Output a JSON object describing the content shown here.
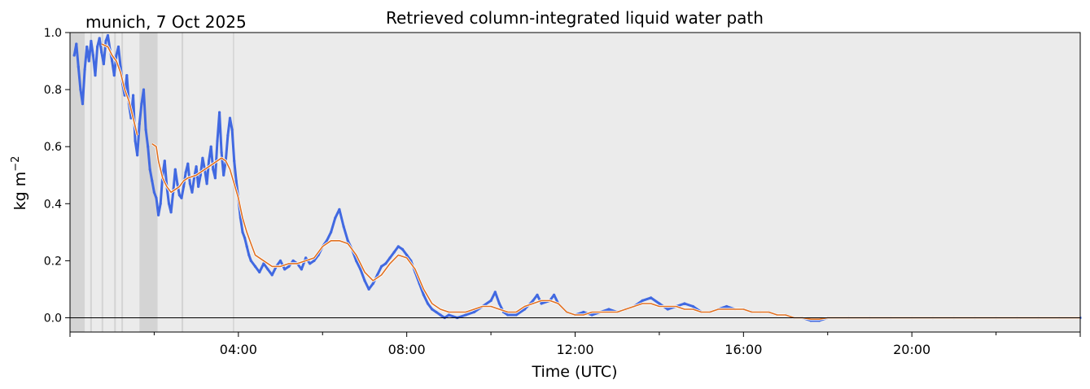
{
  "chart_data": {
    "type": "line",
    "title": "Retrieved column-integrated liquid water path",
    "location_label": "munich, 7 Oct 2025",
    "xlabel": "Time (UTC)",
    "ylabel_base": "kg m",
    "ylabel_exp": "−2",
    "xlim_hours": [
      0,
      24
    ],
    "ylim": [
      -0.05,
      1.0
    ],
    "x_ticks": [
      {
        "hour": 4,
        "label": "04:00"
      },
      {
        "hour": 8,
        "label": "08:00"
      },
      {
        "hour": 12,
        "label": "12:00"
      },
      {
        "hour": 16,
        "label": "16:00"
      },
      {
        "hour": 20,
        "label": "20:00"
      }
    ],
    "y_ticks": [
      {
        "value": 0.0,
        "label": "0.0"
      },
      {
        "value": 0.2,
        "label": "0.2"
      },
      {
        "value": 0.4,
        "label": "0.4"
      },
      {
        "value": 0.6,
        "label": "0.6"
      },
      {
        "value": 0.8,
        "label": "0.8"
      },
      {
        "value": 1.0,
        "label": "1.0"
      }
    ],
    "grid": false,
    "zero_line": true,
    "colors": {
      "background": "#ebebeb",
      "raw_series": "#4169e1",
      "smoothed_series": "#e07020",
      "flag_shade": "#d4d4d4"
    },
    "flagged_periods_hours": [
      [
        0.0,
        0.35
      ],
      [
        0.48,
        0.52
      ],
      [
        0.75,
        0.79
      ],
      [
        1.05,
        1.09
      ],
      [
        1.22,
        1.26
      ],
      [
        1.65,
        2.08
      ],
      [
        2.65,
        2.69
      ],
      [
        3.87,
        3.9
      ]
    ],
    "raw_series": {
      "name": "raw",
      "points": [
        [
          0.1,
          0.92
        ],
        [
          0.15,
          0.96
        ],
        [
          0.2,
          0.88
        ],
        [
          0.25,
          0.8
        ],
        [
          0.3,
          0.75
        ],
        [
          0.35,
          0.87
        ],
        [
          0.4,
          0.95
        ],
        [
          0.45,
          0.9
        ],
        [
          0.5,
          0.97
        ],
        [
          0.55,
          0.92
        ],
        [
          0.6,
          0.85
        ],
        [
          0.65,
          0.95
        ],
        [
          0.7,
          0.98
        ],
        [
          0.75,
          0.93
        ],
        [
          0.8,
          0.89
        ],
        [
          0.85,
          0.97
        ],
        [
          0.9,
          0.99
        ],
        [
          0.95,
          0.94
        ],
        [
          1.0,
          0.9
        ],
        [
          1.05,
          0.85
        ],
        [
          1.1,
          0.92
        ],
        [
          1.15,
          0.95
        ],
        [
          1.2,
          0.88
        ],
        [
          1.25,
          0.82
        ],
        [
          1.3,
          0.78
        ],
        [
          1.35,
          0.85
        ],
        [
          1.4,
          0.75
        ],
        [
          1.45,
          0.7
        ],
        [
          1.5,
          0.78
        ],
        [
          1.55,
          0.62
        ],
        [
          1.6,
          0.57
        ],
        [
          1.65,
          0.68
        ],
        [
          1.7,
          0.75
        ],
        [
          1.75,
          0.8
        ],
        [
          1.8,
          0.66
        ],
        [
          1.85,
          0.6
        ],
        [
          1.9,
          0.52
        ],
        [
          1.95,
          0.48
        ],
        [
          2.0,
          0.44
        ],
        [
          2.05,
          0.42
        ],
        [
          2.1,
          0.36
        ],
        [
          2.15,
          0.4
        ],
        [
          2.2,
          0.5
        ],
        [
          2.25,
          0.55
        ],
        [
          2.3,
          0.46
        ],
        [
          2.35,
          0.4
        ],
        [
          2.4,
          0.37
        ],
        [
          2.45,
          0.44
        ],
        [
          2.5,
          0.52
        ],
        [
          2.55,
          0.47
        ],
        [
          2.6,
          0.43
        ],
        [
          2.65,
          0.42
        ],
        [
          2.7,
          0.46
        ],
        [
          2.75,
          0.51
        ],
        [
          2.8,
          0.54
        ],
        [
          2.85,
          0.47
        ],
        [
          2.9,
          0.44
        ],
        [
          2.95,
          0.49
        ],
        [
          3.0,
          0.53
        ],
        [
          3.05,
          0.46
        ],
        [
          3.1,
          0.5
        ],
        [
          3.15,
          0.56
        ],
        [
          3.2,
          0.52
        ],
        [
          3.25,
          0.47
        ],
        [
          3.3,
          0.55
        ],
        [
          3.35,
          0.6
        ],
        [
          3.4,
          0.52
        ],
        [
          3.45,
          0.49
        ],
        [
          3.5,
          0.62
        ],
        [
          3.55,
          0.72
        ],
        [
          3.6,
          0.58
        ],
        [
          3.65,
          0.5
        ],
        [
          3.7,
          0.55
        ],
        [
          3.75,
          0.64
        ],
        [
          3.8,
          0.7
        ],
        [
          3.85,
          0.66
        ],
        [
          3.9,
          0.55
        ],
        [
          3.95,
          0.48
        ],
        [
          4.0,
          0.42
        ],
        [
          4.05,
          0.35
        ],
        [
          4.1,
          0.3
        ],
        [
          4.15,
          0.28
        ],
        [
          4.2,
          0.25
        ],
        [
          4.25,
          0.22
        ],
        [
          4.3,
          0.2
        ],
        [
          4.4,
          0.18
        ],
        [
          4.5,
          0.16
        ],
        [
          4.6,
          0.19
        ],
        [
          4.7,
          0.17
        ],
        [
          4.8,
          0.15
        ],
        [
          4.9,
          0.18
        ],
        [
          5.0,
          0.2
        ],
        [
          5.1,
          0.17
        ],
        [
          5.2,
          0.18
        ],
        [
          5.3,
          0.2
        ],
        [
          5.4,
          0.19
        ],
        [
          5.5,
          0.17
        ],
        [
          5.6,
          0.21
        ],
        [
          5.7,
          0.19
        ],
        [
          5.8,
          0.2
        ],
        [
          5.9,
          0.22
        ],
        [
          6.0,
          0.25
        ],
        [
          6.1,
          0.27
        ],
        [
          6.2,
          0.3
        ],
        [
          6.3,
          0.35
        ],
        [
          6.4,
          0.38
        ],
        [
          6.5,
          0.32
        ],
        [
          6.6,
          0.27
        ],
        [
          6.7,
          0.24
        ],
        [
          6.8,
          0.2
        ],
        [
          6.9,
          0.17
        ],
        [
          7.0,
          0.13
        ],
        [
          7.1,
          0.1
        ],
        [
          7.2,
          0.12
        ],
        [
          7.3,
          0.15
        ],
        [
          7.4,
          0.18
        ],
        [
          7.5,
          0.19
        ],
        [
          7.6,
          0.21
        ],
        [
          7.7,
          0.23
        ],
        [
          7.8,
          0.25
        ],
        [
          7.9,
          0.24
        ],
        [
          8.0,
          0.22
        ],
        [
          8.1,
          0.2
        ],
        [
          8.2,
          0.16
        ],
        [
          8.3,
          0.12
        ],
        [
          8.4,
          0.08
        ],
        [
          8.5,
          0.05
        ],
        [
          8.6,
          0.03
        ],
        [
          8.7,
          0.02
        ],
        [
          8.8,
          0.01
        ],
        [
          8.9,
          0.0
        ],
        [
          9.0,
          0.01
        ],
        [
          9.2,
          0.0
        ],
        [
          9.4,
          0.01
        ],
        [
          9.6,
          0.02
        ],
        [
          9.8,
          0.04
        ],
        [
          10.0,
          0.06
        ],
        [
          10.1,
          0.09
        ],
        [
          10.2,
          0.05
        ],
        [
          10.3,
          0.02
        ],
        [
          10.4,
          0.01
        ],
        [
          10.6,
          0.01
        ],
        [
          10.8,
          0.03
        ],
        [
          11.0,
          0.06
        ],
        [
          11.1,
          0.08
        ],
        [
          11.2,
          0.05
        ],
        [
          11.4,
          0.06
        ],
        [
          11.5,
          0.08
        ],
        [
          11.6,
          0.05
        ],
        [
          11.8,
          0.02
        ],
        [
          12.0,
          0.01
        ],
        [
          12.2,
          0.02
        ],
        [
          12.4,
          0.01
        ],
        [
          12.6,
          0.02
        ],
        [
          12.8,
          0.03
        ],
        [
          13.0,
          0.02
        ],
        [
          13.2,
          0.03
        ],
        [
          13.4,
          0.04
        ],
        [
          13.6,
          0.06
        ],
        [
          13.8,
          0.07
        ],
        [
          14.0,
          0.05
        ],
        [
          14.2,
          0.03
        ],
        [
          14.4,
          0.04
        ],
        [
          14.6,
          0.05
        ],
        [
          14.8,
          0.04
        ],
        [
          15.0,
          0.02
        ],
        [
          15.2,
          0.02
        ],
        [
          15.4,
          0.03
        ],
        [
          15.6,
          0.04
        ],
        [
          15.8,
          0.03
        ],
        [
          16.0,
          0.03
        ],
        [
          16.2,
          0.02
        ],
        [
          16.4,
          0.02
        ],
        [
          16.6,
          0.02
        ],
        [
          16.8,
          0.01
        ],
        [
          17.0,
          0.01
        ],
        [
          17.2,
          0.0
        ],
        [
          17.4,
          0.0
        ],
        [
          17.6,
          -0.01
        ],
        [
          17.8,
          -0.01
        ],
        [
          18.0,
          0.0
        ],
        [
          18.5,
          0.0
        ],
        [
          19.0,
          0.0
        ],
        [
          19.5,
          0.0
        ],
        [
          20.0,
          0.0
        ],
        [
          20.5,
          0.0
        ],
        [
          21.0,
          0.0
        ],
        [
          21.5,
          0.0
        ],
        [
          22.0,
          0.0
        ],
        [
          22.5,
          0.0
        ],
        [
          23.0,
          0.0
        ],
        [
          23.5,
          0.0
        ],
        [
          24.0,
          0.0
        ]
      ]
    },
    "smoothed_series": {
      "name": "smoothed",
      "segments": [
        [
          [
            0.75,
            0.96
          ],
          [
            0.9,
            0.95
          ],
          [
            1.0,
            0.92
          ],
          [
            1.1,
            0.9
          ],
          [
            1.2,
            0.86
          ],
          [
            1.3,
            0.8
          ],
          [
            1.4,
            0.76
          ],
          [
            1.5,
            0.7
          ],
          [
            1.6,
            0.64
          ]
        ],
        [
          [
            1.95,
            0.61
          ],
          [
            2.05,
            0.6
          ],
          [
            2.1,
            0.55
          ],
          [
            2.2,
            0.49
          ],
          [
            2.3,
            0.46
          ],
          [
            2.4,
            0.44
          ],
          [
            2.5,
            0.45
          ],
          [
            2.6,
            0.46
          ],
          [
            2.7,
            0.48
          ],
          [
            2.8,
            0.49
          ],
          [
            3.0,
            0.5
          ],
          [
            3.2,
            0.52
          ],
          [
            3.4,
            0.54
          ],
          [
            3.6,
            0.56
          ],
          [
            3.7,
            0.55
          ],
          [
            3.8,
            0.52
          ],
          [
            3.9,
            0.47
          ],
          [
            4.0,
            0.42
          ],
          [
            4.1,
            0.35
          ],
          [
            4.2,
            0.3
          ],
          [
            4.3,
            0.26
          ],
          [
            4.4,
            0.22
          ],
          [
            4.6,
            0.2
          ],
          [
            4.8,
            0.18
          ],
          [
            5.0,
            0.18
          ],
          [
            5.2,
            0.19
          ],
          [
            5.4,
            0.19
          ],
          [
            5.6,
            0.2
          ],
          [
            5.8,
            0.21
          ],
          [
            6.0,
            0.25
          ],
          [
            6.2,
            0.27
          ],
          [
            6.4,
            0.27
          ],
          [
            6.6,
            0.26
          ],
          [
            6.8,
            0.22
          ],
          [
            7.0,
            0.16
          ],
          [
            7.2,
            0.13
          ],
          [
            7.4,
            0.15
          ],
          [
            7.6,
            0.19
          ],
          [
            7.8,
            0.22
          ],
          [
            8.0,
            0.21
          ],
          [
            8.2,
            0.17
          ],
          [
            8.4,
            0.1
          ],
          [
            8.6,
            0.05
          ],
          [
            8.8,
            0.03
          ],
          [
            9.0,
            0.02
          ],
          [
            9.2,
            0.02
          ],
          [
            9.4,
            0.02
          ],
          [
            9.6,
            0.03
          ],
          [
            9.8,
            0.04
          ],
          [
            10.0,
            0.04
          ],
          [
            10.2,
            0.03
          ],
          [
            10.4,
            0.02
          ],
          [
            10.6,
            0.02
          ],
          [
            10.8,
            0.04
          ],
          [
            11.0,
            0.05
          ],
          [
            11.2,
            0.06
          ],
          [
            11.4,
            0.06
          ],
          [
            11.6,
            0.05
          ],
          [
            11.8,
            0.02
          ],
          [
            12.0,
            0.01
          ],
          [
            12.2,
            0.01
          ],
          [
            12.4,
            0.02
          ],
          [
            12.6,
            0.02
          ],
          [
            12.8,
            0.02
          ],
          [
            13.0,
            0.02
          ],
          [
            13.2,
            0.03
          ],
          [
            13.4,
            0.04
          ],
          [
            13.6,
            0.05
          ],
          [
            13.8,
            0.05
          ],
          [
            14.0,
            0.04
          ],
          [
            14.2,
            0.04
          ],
          [
            14.4,
            0.04
          ],
          [
            14.6,
            0.03
          ],
          [
            14.8,
            0.03
          ],
          [
            15.0,
            0.02
          ],
          [
            15.2,
            0.02
          ],
          [
            15.4,
            0.03
          ],
          [
            15.6,
            0.03
          ],
          [
            15.8,
            0.03
          ],
          [
            16.0,
            0.03
          ],
          [
            16.2,
            0.02
          ],
          [
            16.4,
            0.02
          ],
          [
            16.6,
            0.02
          ],
          [
            16.8,
            0.01
          ],
          [
            17.0,
            0.01
          ],
          [
            17.2,
            0.0
          ],
          [
            17.4,
            0.0
          ],
          [
            17.6,
            -0.005
          ],
          [
            17.8,
            -0.005
          ],
          [
            18.0,
            0.0
          ],
          [
            19.0,
            0.0
          ],
          [
            20.0,
            0.0
          ],
          [
            21.0,
            0.0
          ],
          [
            22.0,
            0.0
          ],
          [
            23.0,
            0.0
          ],
          [
            24.0,
            0.0
          ]
        ]
      ]
    }
  }
}
